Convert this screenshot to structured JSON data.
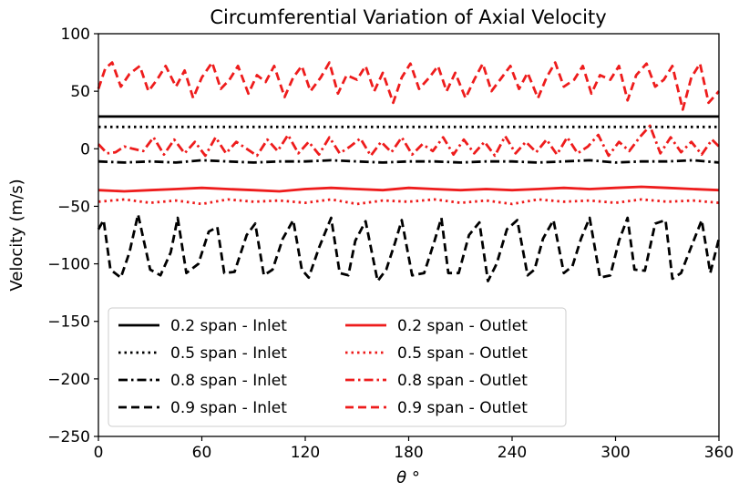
{
  "chart_data": {
    "type": "line",
    "title": "Circumferential Variation of Axial Velocity",
    "xlabel": "θ °",
    "ylabel": "Velocity (m/s)",
    "xlim": [
      0,
      360
    ],
    "ylim": [
      -250,
      100
    ],
    "xticks": [
      0,
      60,
      120,
      180,
      240,
      300,
      360
    ],
    "xtick_labels": [
      "0",
      "60",
      "120",
      "180",
      "240",
      "300",
      "360"
    ],
    "yticks": [
      100,
      50,
      0,
      -50,
      -100,
      -150,
      -200,
      -250
    ],
    "ytick_labels": [
      "100",
      "50",
      "0",
      "−50",
      "−100",
      "−150",
      "−200",
      "−250"
    ],
    "grid": false,
    "legend_position": "lower-left",
    "series": [
      {
        "name": "0.2 span - Inlet",
        "color": "#000000",
        "dash": "solid",
        "x": [
          0,
          60,
          120,
          180,
          240,
          300,
          360
        ],
        "y": [
          28,
          28,
          28,
          28,
          28,
          28,
          28
        ]
      },
      {
        "name": "0.5 span - Inlet",
        "color": "#000000",
        "dash": "dotted",
        "x": [
          0,
          60,
          120,
          180,
          240,
          300,
          360
        ],
        "y": [
          19,
          19,
          19,
          19,
          19,
          19,
          19
        ]
      },
      {
        "name": "0.8 span - Inlet",
        "color": "#000000",
        "dash": "dashdot",
        "x": [
          0,
          15,
          30,
          45,
          60,
          75,
          90,
          105,
          120,
          135,
          150,
          165,
          180,
          195,
          210,
          225,
          240,
          255,
          270,
          285,
          300,
          315,
          330,
          345,
          360
        ],
        "y": [
          -11,
          -12,
          -11,
          -12,
          -10,
          -11,
          -12,
          -11,
          -11,
          -10,
          -11,
          -12,
          -11,
          -11,
          -12,
          -11,
          -11,
          -12,
          -11,
          -10,
          -12,
          -11,
          -11,
          -10,
          -12
        ]
      },
      {
        "name": "0.9 span - Inlet",
        "color": "#000000",
        "dash": "dashed",
        "x": [
          0,
          3,
          7,
          13,
          18,
          23,
          30,
          36,
          42,
          46,
          51,
          58,
          64,
          69,
          73,
          79,
          86,
          91,
          96,
          101,
          107,
          113,
          118,
          122,
          128,
          135,
          140,
          145,
          149,
          155,
          162,
          167,
          172,
          176,
          182,
          189,
          195,
          199,
          203,
          209,
          215,
          221,
          226,
          231,
          237,
          243,
          249,
          253,
          258,
          264,
          270,
          275,
          280,
          285,
          291,
          297,
          302,
          307,
          311,
          317,
          323,
          329,
          333,
          338,
          344,
          350,
          355,
          360
        ],
        "y": [
          -70,
          -62,
          -105,
          -112,
          -90,
          -57,
          -105,
          -110,
          -90,
          -60,
          -108,
          -100,
          -72,
          -68,
          -108,
          -107,
          -75,
          -65,
          -110,
          -105,
          -78,
          -62,
          -105,
          -112,
          -86,
          -60,
          -108,
          -110,
          -80,
          -63,
          -115,
          -105,
          -82,
          -62,
          -110,
          -108,
          -80,
          -60,
          -108,
          -108,
          -75,
          -64,
          -115,
          -100,
          -70,
          -62,
          -110,
          -105,
          -78,
          -62,
          -108,
          -102,
          -78,
          -60,
          -112,
          -110,
          -80,
          -60,
          -105,
          -106,
          -65,
          -62,
          -113,
          -108,
          -85,
          -62,
          -108,
          -78
        ]
      },
      {
        "name": "0.2 span - Outlet",
        "color": "#ee1c1c",
        "dash": "solid",
        "x": [
          0,
          15,
          30,
          45,
          60,
          75,
          90,
          105,
          120,
          135,
          150,
          165,
          180,
          195,
          210,
          225,
          240,
          255,
          270,
          285,
          300,
          315,
          330,
          345,
          360
        ],
        "y": [
          -36,
          -37,
          -36,
          -35,
          -34,
          -35,
          -36,
          -37,
          -35,
          -34,
          -35,
          -36,
          -34,
          -35,
          -36,
          -35,
          -36,
          -35,
          -34,
          -35,
          -34,
          -33,
          -34,
          -35,
          -36
        ]
      },
      {
        "name": "0.5 span - Outlet",
        "color": "#ee1c1c",
        "dash": "dotted",
        "x": [
          0,
          15,
          30,
          45,
          60,
          75,
          90,
          105,
          120,
          135,
          150,
          165,
          180,
          195,
          210,
          225,
          240,
          255,
          270,
          285,
          300,
          315,
          330,
          345,
          360
        ],
        "y": [
          -46,
          -44,
          -47,
          -45,
          -48,
          -44,
          -46,
          -45,
          -47,
          -44,
          -48,
          -45,
          -46,
          -44,
          -47,
          -45,
          -48,
          -44,
          -46,
          -45,
          -47,
          -44,
          -46,
          -45,
          -47
        ]
      },
      {
        "name": "0.8 span - Outlet",
        "color": "#ee1c1c",
        "dash": "dashdot",
        "x": [
          0,
          5,
          10,
          15,
          20,
          26,
          32,
          38,
          44,
          50,
          56,
          62,
          68,
          74,
          80,
          86,
          92,
          98,
          104,
          110,
          116,
          122,
          128,
          134,
          140,
          146,
          152,
          158,
          164,
          170,
          176,
          182,
          188,
          194,
          200,
          206,
          212,
          218,
          224,
          230,
          236,
          242,
          248,
          254,
          260,
          266,
          272,
          278,
          284,
          290,
          296,
          302,
          308,
          314,
          320,
          326,
          332,
          338,
          344,
          350,
          356,
          360
        ],
        "y": [
          4,
          -4,
          -3,
          2,
          0,
          -2,
          10,
          -5,
          8,
          -4,
          6,
          -6,
          10,
          -4,
          6,
          0,
          -6,
          8,
          -2,
          12,
          -4,
          6,
          -5,
          10,
          -4,
          2,
          9,
          -6,
          6,
          -3,
          10,
          -5,
          4,
          -2,
          10,
          -5,
          8,
          -4,
          6,
          -6,
          11,
          -4,
          6,
          -3,
          8,
          -5,
          10,
          -4,
          2,
          12,
          -6,
          6,
          -2,
          10,
          20,
          -4,
          10,
          -3,
          6,
          -5,
          8,
          2
        ]
      },
      {
        "name": "0.9 span - Outlet",
        "color": "#ee1c1c",
        "dash": "dashed",
        "x": [
          0,
          4,
          8,
          13,
          18,
          24,
          29,
          34,
          39,
          45,
          50,
          55,
          60,
          66,
          71,
          76,
          81,
          87,
          92,
          97,
          102,
          108,
          113,
          118,
          123,
          129,
          134,
          139,
          144,
          150,
          155,
          160,
          165,
          171,
          176,
          181,
          186,
          192,
          197,
          202,
          207,
          213,
          218,
          223,
          228,
          234,
          239,
          244,
          249,
          255,
          260,
          265,
          270,
          276,
          281,
          286,
          291,
          297,
          302,
          307,
          312,
          318,
          323,
          328,
          333,
          339,
          344,
          349,
          354,
          360
        ],
        "y": [
          52,
          70,
          75,
          54,
          65,
          72,
          50,
          60,
          72,
          54,
          68,
          44,
          62,
          75,
          52,
          60,
          72,
          48,
          64,
          58,
          72,
          45,
          62,
          72,
          50,
          62,
          75,
          48,
          64,
          60,
          72,
          50,
          66,
          40,
          62,
          74,
          52,
          62,
          72,
          50,
          66,
          44,
          60,
          74,
          50,
          62,
          72,
          52,
          66,
          44,
          62,
          75,
          54,
          60,
          72,
          48,
          64,
          60,
          72,
          42,
          64,
          74,
          54,
          60,
          72,
          34,
          62,
          74,
          40,
          50
        ]
      }
    ]
  }
}
